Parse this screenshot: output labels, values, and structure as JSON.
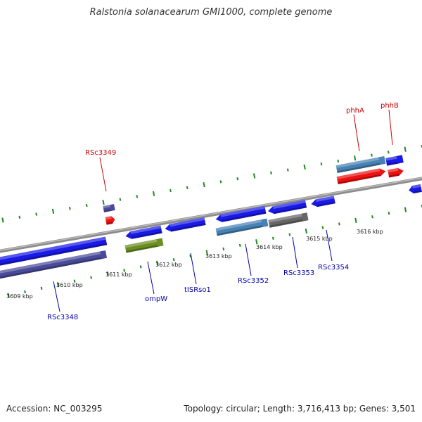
{
  "title": "Ralstonia solanacearum GMI1000, complete genome",
  "footer": {
    "accession": "Accession: NC_003295",
    "summary": "Topology: circular; Length: 3,716,413 bp; Genes: 3,501"
  },
  "colors": {
    "backbone": "#8c8c8c",
    "ticks": "#1e8a1e",
    "label_forward": "#cc0000",
    "label_reverse": "#0000aa"
  },
  "scale": {
    "labels": [
      "3609 kbp",
      "3610 kbp",
      "3611 kbp",
      "3612 kbp",
      "3613 kbp",
      "3614 kbp",
      "3615 kbp",
      "3616 kbp"
    ]
  },
  "features": [
    {
      "name": "RSc3348",
      "strand": "reverse",
      "color": "#1a1ae6"
    },
    {
      "name": "RSc3348",
      "strand": "reverse",
      "color": "#4a4a9a"
    },
    {
      "name": "RSc3349",
      "strand": "forward",
      "color": "#4a4a9a"
    },
    {
      "name": "RSc3349",
      "strand": "forward",
      "color": "#ee1111"
    },
    {
      "name": "ompW",
      "strand": "reverse",
      "color": "#1a1ae6"
    },
    {
      "name": "ompW",
      "strand": "reverse",
      "color": "#6b8e23"
    },
    {
      "name": "tISRso1",
      "strand": "reverse",
      "color": "#1a1ae6"
    },
    {
      "name": "RSc3352",
      "strand": "reverse",
      "color": "#1a1ae6"
    },
    {
      "name": "RSc3352",
      "strand": "reverse",
      "color": "#4682b4"
    },
    {
      "name": "RSc3353",
      "strand": "reverse",
      "color": "#1a1ae6"
    },
    {
      "name": "RSc3353",
      "strand": "reverse",
      "color": "#666666"
    },
    {
      "name": "RSc3354",
      "strand": "reverse",
      "color": "#1a1ae6"
    },
    {
      "name": "phhA",
      "strand": "forward",
      "color": "#4682b4"
    },
    {
      "name": "phhA",
      "strand": "forward",
      "color": "#ee1111"
    },
    {
      "name": "phhB",
      "strand": "forward",
      "color": "#1a1ae6"
    },
    {
      "name": "phhB",
      "strand": "forward",
      "color": "#ee1111"
    },
    {
      "name": "",
      "strand": "reverse",
      "color": "#1a1ae6"
    }
  ],
  "gene_labels": [
    {
      "text": "RSc3348",
      "strand": "reverse"
    },
    {
      "text": "RSc3349",
      "strand": "forward"
    },
    {
      "text": "ompW",
      "strand": "reverse"
    },
    {
      "text": "tISRso1",
      "strand": "reverse"
    },
    {
      "text": "RSc3352",
      "strand": "reverse"
    },
    {
      "text": "RSc3353",
      "strand": "reverse"
    },
    {
      "text": "RSc3354",
      "strand": "reverse"
    },
    {
      "text": "phhA",
      "strand": "forward"
    },
    {
      "text": "phhB",
      "strand": "forward"
    }
  ]
}
